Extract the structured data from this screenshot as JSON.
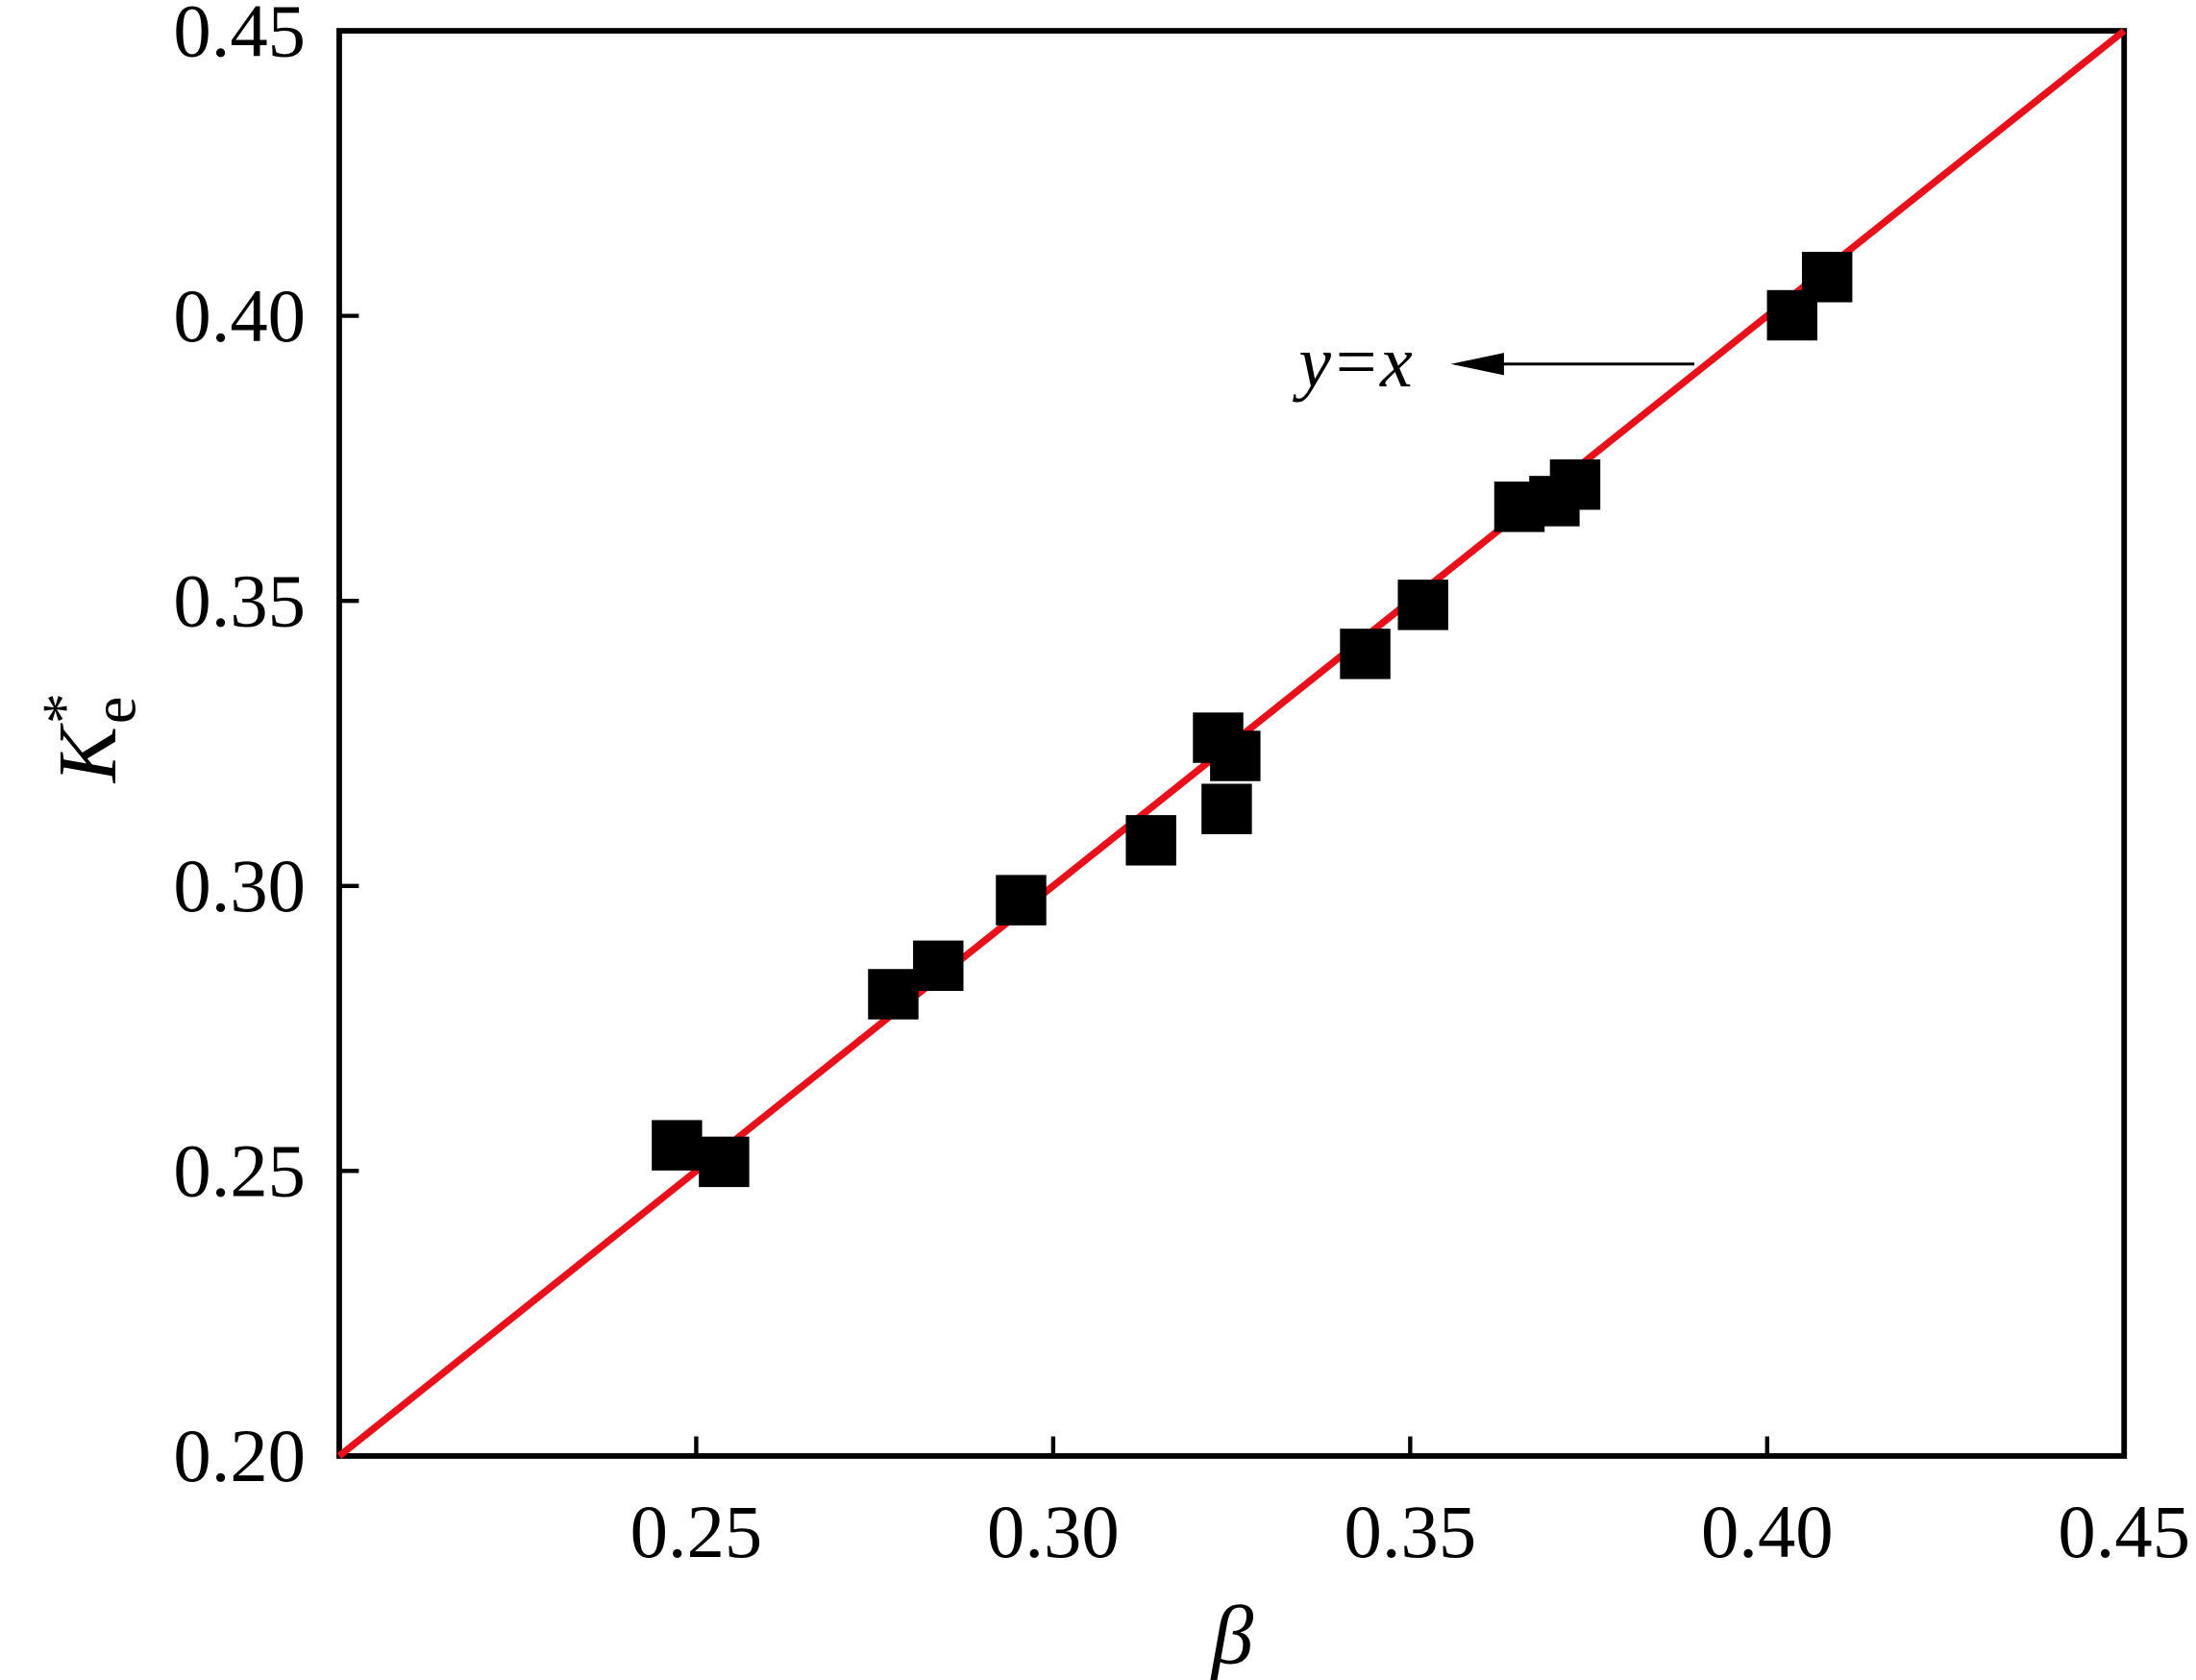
{
  "chart_data": {
    "type": "scatter",
    "xlabel": "β",
    "ylabel": {
      "base": "K",
      "sub": "e",
      "sup": "*"
    },
    "x": [
      0.2473,
      0.2539,
      0.2776,
      0.2839,
      0.2955,
      0.3137,
      0.3231,
      0.3255,
      0.3243,
      0.3437,
      0.3518,
      0.3653,
      0.3702,
      0.3731,
      0.4035,
      0.4084
    ],
    "values": [
      0.2545,
      0.2516,
      0.281,
      0.286,
      0.2975,
      0.308,
      0.326,
      0.3228,
      0.3135,
      0.3407,
      0.3493,
      0.3665,
      0.3675,
      0.3704,
      0.4001,
      0.4068
    ],
    "color": "#000000",
    "xlim": [
      0.2,
      0.45
    ],
    "ylim": [
      0.2,
      0.45
    ],
    "xticks": [
      {
        "value": 0.25,
        "label": "0.25"
      },
      {
        "value": 0.3,
        "label": "0.30"
      },
      {
        "value": 0.35,
        "label": "0.35"
      },
      {
        "value": 0.4,
        "label": "0.40"
      },
      {
        "value": 0.45,
        "label": "0.45"
      }
    ],
    "yticks": [
      {
        "value": 0.2,
        "label": "0.20"
      },
      {
        "value": 0.25,
        "label": "0.25"
      },
      {
        "value": 0.3,
        "label": "0.30"
      },
      {
        "value": 0.35,
        "label": "0.35"
      },
      {
        "value": 0.4,
        "label": "0.40"
      },
      {
        "value": 0.45,
        "label": "0.45"
      }
    ],
    "reference_line": {
      "label": "y=x",
      "color": "#e8101a"
    }
  }
}
